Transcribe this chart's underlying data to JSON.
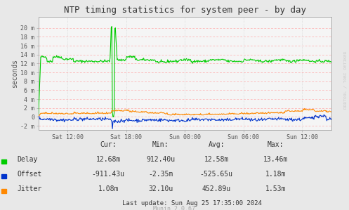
{
  "title": "NTP timing statistics for system peer - by day",
  "ylabel": "seconds",
  "background_color": "#e8e8e8",
  "plot_bg_color": "#f5f5f5",
  "ytick_labels": [
    "-2 m",
    "0",
    "2 m",
    "4 m",
    "6 m",
    "8 m",
    "10 m",
    "12 m",
    "14 m",
    "16 m",
    "18 m",
    "20 m"
  ],
  "ytick_vals": [
    -0.002,
    0.0,
    0.002,
    0.004,
    0.006,
    0.008,
    0.01,
    0.012,
    0.014,
    0.016,
    0.018,
    0.02
  ],
  "xtick_labels": [
    "Sat 12:00",
    "Sat 18:00",
    "Sun 00:00",
    "Sun 06:00",
    "Sun 12:00"
  ],
  "xtick_vals": [
    0.1,
    0.3,
    0.5,
    0.7,
    0.9
  ],
  "ylim": [
    -0.003,
    0.0225
  ],
  "xlim": [
    0.0,
    1.0
  ],
  "delay_color": "#00cc00",
  "offset_color": "#0033cc",
  "jitter_color": "#ff8800",
  "hgrid_color": "#ffaaaa",
  "vgrid_color": "#cccccc",
  "legend_labels": [
    "Delay",
    "Offset",
    "Jitter"
  ],
  "stats_cols": [
    "Cur:",
    "Min:",
    "Avg:",
    "Max:"
  ],
  "delay_stats": [
    "12.68m",
    "912.40u",
    "12.58m",
    "13.46m"
  ],
  "offset_stats": [
    "-911.43u",
    "-2.35m",
    "-525.65u",
    "1.18m"
  ],
  "jitter_stats": [
    "1.08m",
    "32.10u",
    "452.89u",
    "1.53m"
  ],
  "last_update": "Last update: Sun Aug 25 17:35:00 2024",
  "munin_version": "Munin 2.0.67",
  "watermark": "RRDTOOL / TOBI OETIKER",
  "text_color": "#555555",
  "title_color": "#333333"
}
